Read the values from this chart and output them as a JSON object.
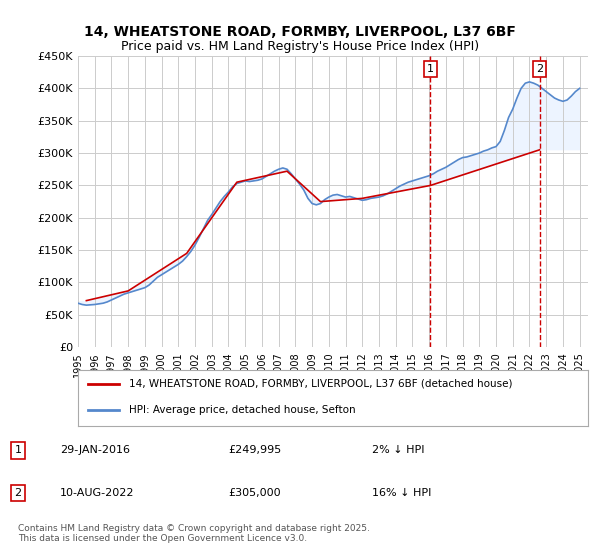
{
  "title": "14, WHEATSTONE ROAD, FORMBY, LIVERPOOL, L37 6BF",
  "subtitle": "Price paid vs. HM Land Registry's House Price Index (HPI)",
  "ylabel_ticks": [
    "£0",
    "£50K",
    "£100K",
    "£150K",
    "£200K",
    "£250K",
    "£300K",
    "£350K",
    "£400K",
    "£450K"
  ],
  "ylim": [
    0,
    450000
  ],
  "xlim_start": 1995.0,
  "xlim_end": 2025.5,
  "marker1_year": 2016.08,
  "marker2_year": 2022.6,
  "marker1_label": "1",
  "marker2_label": "2",
  "annotation1": "29-JAN-2016    £249,995    2% ↓ HPI",
  "annotation2": "10-AUG-2022    £305,000    16% ↓ HPI",
  "legend_line1": "14, WHEATSTONE ROAD, FORMBY, LIVERPOOL, L37 6BF (detached house)",
  "legend_line2": "HPI: Average price, detached house, Sefton",
  "footer": "Contains HM Land Registry data © Crown copyright and database right 2025.\nThis data is licensed under the Open Government Licence v3.0.",
  "red_color": "#cc0000",
  "blue_color": "#5588cc",
  "fill_color": "#cce0ff",
  "background_plot": "#ffffff",
  "background_fig": "#ffffff",
  "grid_color": "#cccccc",
  "hpi_data_x": [
    1995.0,
    1995.25,
    1995.5,
    1995.75,
    1996.0,
    1996.25,
    1996.5,
    1996.75,
    1997.0,
    1997.25,
    1997.5,
    1997.75,
    1998.0,
    1998.25,
    1998.5,
    1998.75,
    1999.0,
    1999.25,
    1999.5,
    1999.75,
    2000.0,
    2000.25,
    2000.5,
    2000.75,
    2001.0,
    2001.25,
    2001.5,
    2001.75,
    2002.0,
    2002.25,
    2002.5,
    2002.75,
    2003.0,
    2003.25,
    2003.5,
    2003.75,
    2004.0,
    2004.25,
    2004.5,
    2004.75,
    2005.0,
    2005.25,
    2005.5,
    2005.75,
    2006.0,
    2006.25,
    2006.5,
    2006.75,
    2007.0,
    2007.25,
    2007.5,
    2007.75,
    2008.0,
    2008.25,
    2008.5,
    2008.75,
    2009.0,
    2009.25,
    2009.5,
    2009.75,
    2010.0,
    2010.25,
    2010.5,
    2010.75,
    2011.0,
    2011.25,
    2011.5,
    2011.75,
    2012.0,
    2012.25,
    2012.5,
    2012.75,
    2013.0,
    2013.25,
    2013.5,
    2013.75,
    2014.0,
    2014.25,
    2014.5,
    2014.75,
    2015.0,
    2015.25,
    2015.5,
    2015.75,
    2016.0,
    2016.25,
    2016.5,
    2016.75,
    2017.0,
    2017.25,
    2017.5,
    2017.75,
    2018.0,
    2018.25,
    2018.5,
    2018.75,
    2019.0,
    2019.25,
    2019.5,
    2019.75,
    2020.0,
    2020.25,
    2020.5,
    2020.75,
    2021.0,
    2021.25,
    2021.5,
    2021.75,
    2022.0,
    2022.25,
    2022.5,
    2022.75,
    2023.0,
    2023.25,
    2023.5,
    2023.75,
    2024.0,
    2024.25,
    2024.5,
    2024.75,
    2025.0
  ],
  "hpi_data_y": [
    68000,
    66000,
    65000,
    65500,
    66000,
    67000,
    68000,
    70000,
    73000,
    76000,
    79000,
    82000,
    84000,
    86000,
    88000,
    90000,
    92000,
    96000,
    102000,
    108000,
    112000,
    116000,
    120000,
    124000,
    128000,
    133000,
    140000,
    148000,
    158000,
    170000,
    183000,
    196000,
    205000,
    215000,
    225000,
    233000,
    240000,
    248000,
    253000,
    255000,
    257000,
    256000,
    257000,
    258000,
    260000,
    264000,
    268000,
    272000,
    275000,
    277000,
    275000,
    268000,
    260000,
    252000,
    243000,
    230000,
    222000,
    220000,
    222000,
    228000,
    232000,
    235000,
    236000,
    234000,
    232000,
    233000,
    231000,
    229000,
    227000,
    228000,
    230000,
    231000,
    232000,
    234000,
    237000,
    241000,
    245000,
    249000,
    252000,
    255000,
    257000,
    259000,
    261000,
    263000,
    265000,
    268000,
    272000,
    275000,
    278000,
    282000,
    286000,
    290000,
    293000,
    294000,
    296000,
    298000,
    300000,
    303000,
    305000,
    308000,
    310000,
    318000,
    335000,
    355000,
    368000,
    385000,
    400000,
    408000,
    410000,
    408000,
    405000,
    400000,
    395000,
    390000,
    385000,
    382000,
    380000,
    382000,
    388000,
    395000,
    400000
  ],
  "price_paid_x": [
    1995.5,
    1998.0,
    2001.5,
    2004.5,
    2007.5,
    2009.5,
    2012.0,
    2016.08,
    2022.6
  ],
  "price_paid_y": [
    72000,
    87000,
    145000,
    255000,
    272000,
    225000,
    230000,
    249995,
    305000
  ]
}
